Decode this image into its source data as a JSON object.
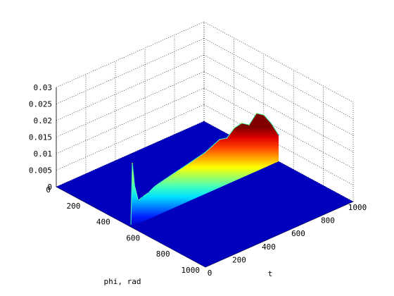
{
  "chart_data": {
    "type": "surface",
    "title": "",
    "xlabel": "t",
    "ylabel": "phi, rad",
    "zlabel": "",
    "xlim": [
      0,
      1000
    ],
    "ylim": [
      0,
      1000
    ],
    "zlim": [
      0,
      0.03
    ],
    "x_ticks": [
      "0",
      "200",
      "400",
      "600",
      "800",
      "1000"
    ],
    "y_ticks": [
      "0",
      "200",
      "400",
      "600",
      "800",
      "1000"
    ],
    "z_ticks": [
      "0",
      "0.005",
      "0.01",
      "0.015",
      "0.02",
      "0.025",
      "0.03"
    ],
    "grid": true,
    "colormap": "jet",
    "ridge": {
      "phi": 500,
      "t": [
        0,
        10,
        25,
        50,
        80,
        120,
        160,
        200,
        250,
        300,
        350,
        400,
        450,
        500,
        550,
        600,
        650,
        700,
        750,
        800,
        850,
        900,
        950,
        1000
      ],
      "z": [
        0.0005,
        0.019,
        0.012,
        0.007,
        0.0075,
        0.008,
        0.009,
        0.0095,
        0.01,
        0.0105,
        0.011,
        0.0115,
        0.012,
        0.0125,
        0.0135,
        0.0145,
        0.014,
        0.016,
        0.0165,
        0.015,
        0.0175,
        0.016,
        0.0125,
        0.008
      ]
    }
  }
}
